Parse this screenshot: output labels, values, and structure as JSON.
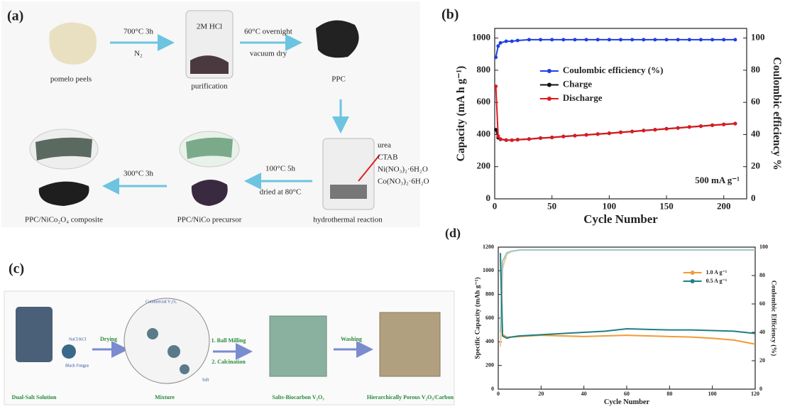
{
  "panel_a": {
    "label": "(a)",
    "step1_condition": "700°C  3h",
    "step1_gas": "N₂",
    "beaker_text": "2M HCl",
    "step2_condition": "60°C  overnight",
    "step2_note": "vacuum dry",
    "pomelo": "pomelo peels",
    "purification": "purification",
    "ppc": "PPC",
    "reagents": [
      "urea",
      "CTAB",
      "Ni(NO₃)₂·6H₂O",
      "Co(NO₃)₂·6H₂O"
    ],
    "step3_condition": "100°C 5h",
    "step3_note": "dried at 80°C",
    "step4_condition": "300°C 3h",
    "hydrothermal": "hydrothermal reaction",
    "precursor": "PPC/NiCo  precursor",
    "composite": "PPC/NiCo₂O₄  composite"
  },
  "panel_c": {
    "label": "(c)",
    "solution": "Dual-Salt Solution",
    "salts": "NaCl/KCl",
    "fungus": "Black Fungus",
    "drying": "Drying",
    "v2o5": "Commercial V₂O₅",
    "salt": "Salt",
    "mixture": "Mixture",
    "step_milling": "1. Ball Milling",
    "step_calcination": "2. Calcination",
    "salts_biocarbon": "Salts-Biocarbon V₂O₃",
    "washing": "Washing",
    "product": "Hierarchically Porous V₂O₃/Carbon"
  },
  "chart_data": [
    {
      "type": "line",
      "label": "(b)",
      "xlabel": "Cycle Number",
      "ylabel": "Capacity (mA h g⁻¹)",
      "y2label": "Coulombic efficiency %",
      "annotation": "500 mA g⁻¹",
      "x": [
        1,
        3,
        5,
        10,
        15,
        20,
        30,
        40,
        50,
        60,
        70,
        80,
        90,
        100,
        110,
        120,
        130,
        140,
        150,
        160,
        170,
        180,
        190,
        200,
        210
      ],
      "xlim": [
        0,
        220
      ],
      "xticks": [
        0,
        50,
        100,
        150,
        200
      ],
      "ylim": [
        0,
        1060
      ],
      "yticks": [
        0,
        200,
        400,
        600,
        800,
        1000
      ],
      "y2lim": [
        0,
        106
      ],
      "y2ticks": [
        0,
        20,
        40,
        60,
        80,
        100
      ],
      "legend": "center",
      "markers": true,
      "series": [
        {
          "name": "Coulombic efficiency (%)",
          "color": "#1f3fe0",
          "axis": "y2",
          "values": [
            88,
            95,
            97,
            98,
            98,
            98.5,
            99,
            99,
            99,
            99,
            99,
            99,
            99,
            99,
            99,
            99,
            99,
            99,
            99,
            99,
            99,
            99,
            99,
            99,
            99
          ]
        },
        {
          "name": "Charge",
          "color": "#111111",
          "values": [
            430,
            380,
            370,
            365,
            365,
            368,
            372,
            378,
            382,
            388,
            393,
            398,
            403,
            408,
            414,
            419,
            425,
            430,
            436,
            441,
            447,
            452,
            458,
            463,
            468
          ]
        },
        {
          "name": "Discharge",
          "color": "#e0191f",
          "values": [
            700,
            390,
            372,
            366,
            365,
            367,
            371,
            377,
            381,
            387,
            392,
            397,
            402,
            407,
            413,
            418,
            424,
            429,
            435,
            440,
            446,
            451,
            457,
            462,
            467
          ]
        }
      ]
    },
    {
      "type": "line",
      "label": "(d)",
      "xlabel": "Cycle Number",
      "ylabel": "Specific Capacity (mAh g⁻¹)",
      "y2label": "Coulombic Efficiency (%)",
      "x": [
        1,
        2,
        4,
        6,
        10,
        20,
        30,
        40,
        50,
        60,
        70,
        80,
        90,
        100,
        110,
        120
      ],
      "xlim": [
        0,
        120
      ],
      "xticks": [
        0,
        20,
        40,
        60,
        80,
        100,
        120
      ],
      "ylim": [
        0,
        1200
      ],
      "yticks": [
        0,
        200,
        400,
        600,
        800,
        1000,
        1200
      ],
      "y2lim": [
        0,
        100
      ],
      "y2ticks": [
        0,
        20,
        40,
        60,
        80,
        100
      ],
      "legend": "upper right",
      "markers": false,
      "series": [
        {
          "color": "#f3c89a",
          "axis": "y2",
          "values": [
            30,
            85,
            95,
            97,
            98,
            98,
            98,
            98,
            98,
            98,
            98,
            98,
            98,
            98,
            98,
            98
          ]
        },
        {
          "color": "#9cc9c6",
          "axis": "y2",
          "values": [
            40,
            90,
            96,
            97,
            98,
            98,
            98,
            98,
            98,
            98,
            98,
            98,
            98,
            98,
            98,
            98
          ]
        },
        {
          "name": "1.0 A g⁻¹",
          "color": "#f39a36",
          "values": [
            1100,
            460,
            440,
            440,
            445,
            455,
            450,
            445,
            450,
            455,
            450,
            445,
            440,
            430,
            415,
            380
          ]
        },
        {
          "name": "0.5 A g⁻¹",
          "color": "#1f7f86",
          "values": [
            1150,
            450,
            430,
            440,
            450,
            460,
            470,
            480,
            490,
            510,
            505,
            500,
            500,
            495,
            490,
            470
          ]
        }
      ]
    }
  ]
}
